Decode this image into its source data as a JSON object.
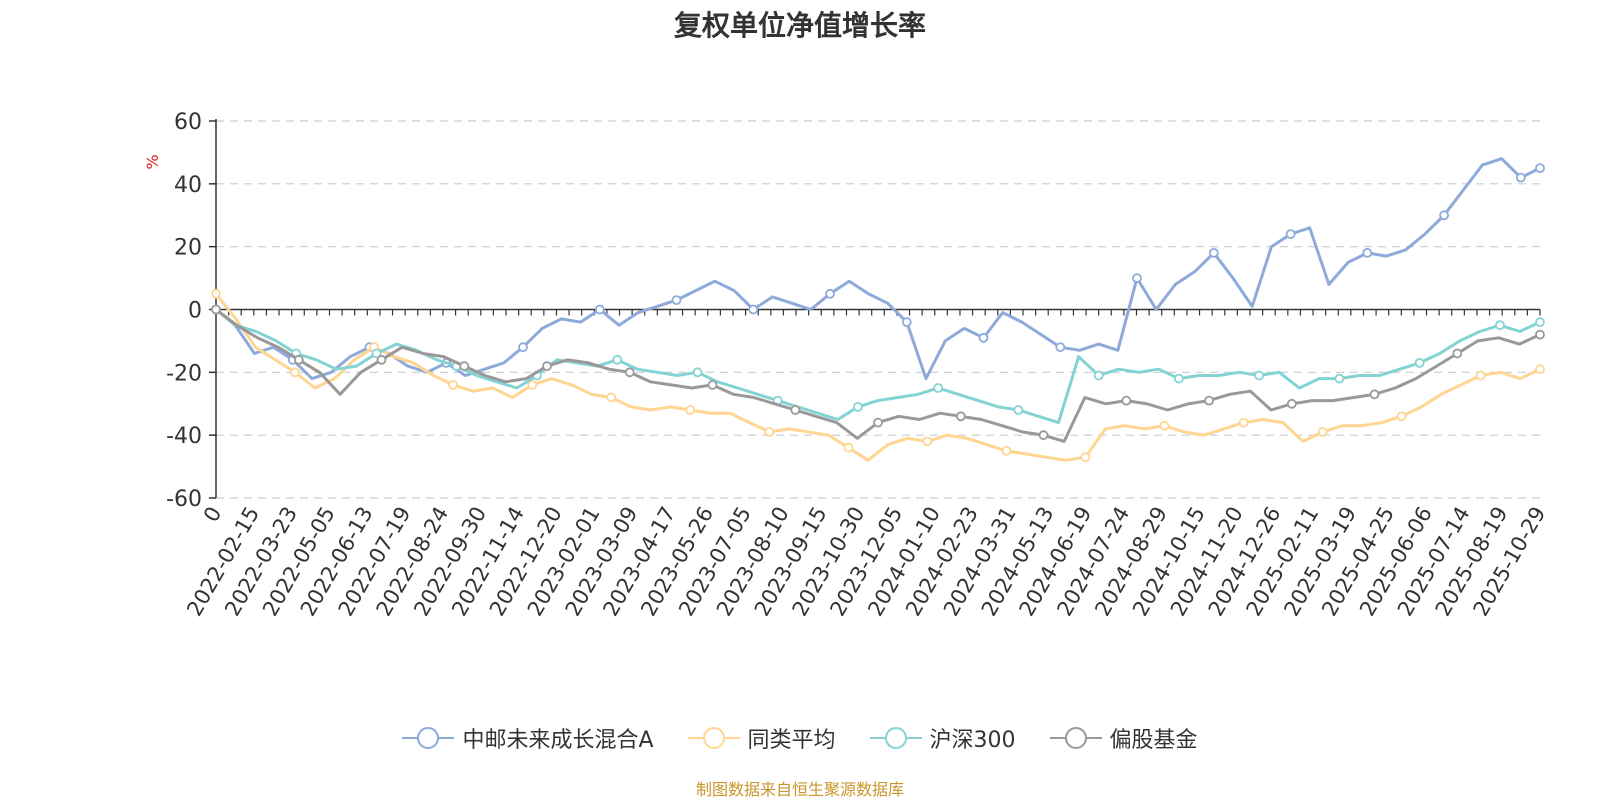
{
  "chart_data": {
    "type": "line",
    "title": "复权单位净值增长率",
    "ylabel": "%",
    "ylim": [
      -60,
      60
    ],
    "yticks": [
      "60",
      "40",
      "20",
      "0",
      "-20",
      "-40",
      "-60"
    ],
    "xlabels": [
      "0",
      "2022-02-15",
      "2022-03-23",
      "2022-05-05",
      "2022-06-13",
      "2022-07-19",
      "2022-08-24",
      "2022-09-30",
      "2022-11-14",
      "2022-12-20",
      "2023-02-01",
      "2023-03-09",
      "2023-04-17",
      "2023-05-26",
      "2023-07-05",
      "2023-08-10",
      "2023-09-15",
      "2023-10-30",
      "2023-12-05",
      "2024-01-10",
      "2024-02-23",
      "2024-03-31",
      "2024-05-13",
      "2024-06-19",
      "2024-07-24",
      "2024-08-29",
      "2024-10-15",
      "2024-11-20",
      "2024-12-26",
      "2025-02-11",
      "2025-03-19",
      "2025-04-25",
      "2025-06-06",
      "2025-07-14",
      "2025-08-19",
      "2025-10-29"
    ],
    "grid": true,
    "legend_position": "bottom",
    "series": [
      {
        "name": "中邮未来成长混合A",
        "color": "#8eaadb",
        "values": [
          0,
          -5,
          -14,
          -12,
          -16,
          -22,
          -20,
          -15,
          -12,
          -14,
          -18,
          -20,
          -17,
          -21,
          -19,
          -17,
          -12,
          -6,
          -3,
          -4,
          0,
          -5,
          -1,
          1,
          3,
          6,
          9,
          6,
          0,
          4,
          2,
          0,
          5,
          9,
          5,
          2,
          -4,
          -22,
          -10,
          -6,
          -9,
          -1,
          -4,
          -8,
          -12,
          -13,
          -11,
          -13,
          10,
          0,
          8,
          12,
          18,
          10,
          1,
          20,
          24,
          26,
          8,
          15,
          18,
          17,
          19,
          24,
          30,
          38,
          46,
          48,
          42,
          45
        ]
      },
      {
        "name": "同类平均",
        "color": "#ffd591",
        "values": [
          5,
          -3,
          -12,
          -16,
          -20,
          -25,
          -22,
          -16,
          -12,
          -15,
          -17,
          -21,
          -24,
          -26,
          -25,
          -28,
          -24,
          -22,
          -24,
          -27,
          -28,
          -31,
          -32,
          -31,
          -32,
          -33,
          -33,
          -36,
          -39,
          -38,
          -39,
          -40,
          -44,
          -48,
          -43,
          -41,
          -42,
          -40,
          -41,
          -43,
          -45,
          -46,
          -47,
          -48,
          -47,
          -38,
          -37,
          -38,
          -37,
          -39,
          -40,
          -38,
          -36,
          -35,
          -36,
          -42,
          -39,
          -37,
          -37,
          -36,
          -34,
          -31,
          -27,
          -24,
          -21,
          -20,
          -22,
          -19
        ]
      },
      {
        "name": "沪深300",
        "color": "#84d3d3",
        "values": [
          0,
          -5,
          -7,
          -10,
          -14,
          -16,
          -19,
          -18,
          -14,
          -11,
          -13,
          -16,
          -18,
          -21,
          -23,
          -25,
          -21,
          -16,
          -17,
          -18,
          -16,
          -19,
          -20,
          -21,
          -20,
          -23,
          -25,
          -27,
          -29,
          -31,
          -33,
          -35,
          -31,
          -29,
          -28,
          -27,
          -25,
          -27,
          -29,
          -31,
          -32,
          -34,
          -36,
          -15,
          -21,
          -19,
          -20,
          -19,
          -22,
          -21,
          -21,
          -20,
          -21,
          -20,
          -25,
          -22,
          -22,
          -21,
          -21,
          -19,
          -17,
          -14,
          -10,
          -7,
          -5,
          -7,
          -4
        ]
      },
      {
        "name": "偏股基金",
        "color": "#999999",
        "values": [
          0,
          -5,
          -9,
          -12,
          -16,
          -20,
          -27,
          -20,
          -16,
          -12,
          -14,
          -15,
          -18,
          -21,
          -23,
          -22,
          -18,
          -16,
          -17,
          -19,
          -20,
          -23,
          -24,
          -25,
          -24,
          -27,
          -28,
          -30,
          -32,
          -34,
          -36,
          -41,
          -36,
          -34,
          -35,
          -33,
          -34,
          -35,
          -37,
          -39,
          -40,
          -42,
          -28,
          -30,
          -29,
          -30,
          -32,
          -30,
          -29,
          -27,
          -26,
          -32,
          -30,
          -29,
          -29,
          -28,
          -27,
          -25,
          -22,
          -18,
          -14,
          -10,
          -9,
          -11,
          -8
        ]
      }
    ]
  },
  "legend": {
    "items": [
      "中邮未来成长混合A",
      "同类平均",
      "沪深300",
      "偏股基金"
    ]
  },
  "source": "制图数据来自恒生聚源数据库"
}
